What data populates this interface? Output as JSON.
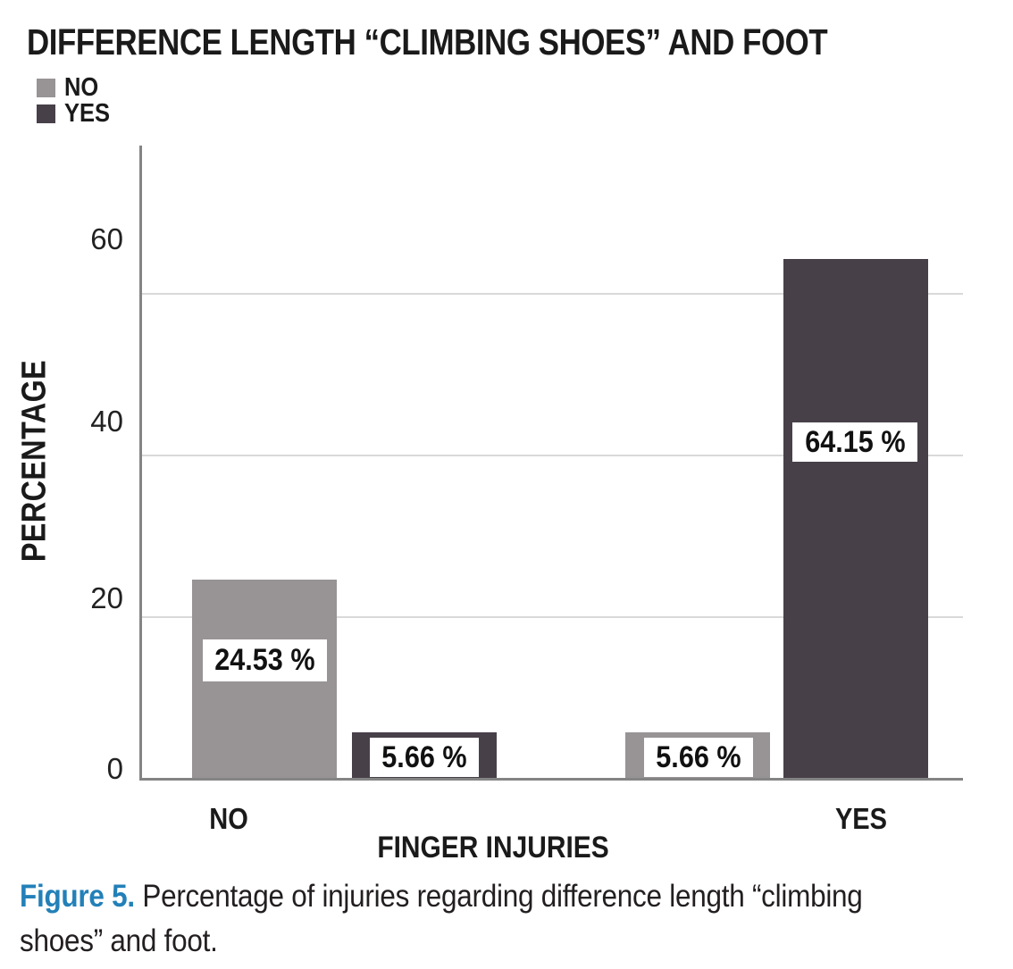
{
  "chart_data": {
    "type": "bar",
    "title": "DIFFERENCE LENGTH “CLIMBING SHOES” AND FOOT",
    "categories": [
      "NO",
      "YES"
    ],
    "series": [
      {
        "name": "NO",
        "color": "#989495",
        "values": [
          24.53,
          5.66
        ]
      },
      {
        "name": "YES",
        "color": "#474049",
        "values": [
          5.66,
          64.15
        ]
      }
    ],
    "value_labels": [
      "24.53 %",
      "5.66 %",
      "5.66 %",
      "64.15 %"
    ],
    "xlabel": "FINGER INJURIES",
    "ylabel": "PERCENTAGE",
    "yticks": [
      0,
      20,
      40,
      60
    ],
    "ylim": [
      0,
      70
    ],
    "grid": "horizontal",
    "legend_position": "top-left"
  },
  "caption": {
    "label": "Figure 5.",
    "line1": "Percentage of injuries regarding difference length “climbing",
    "line2": "shoes” and foot.",
    "accent_color": "#2380b8",
    "text_color": "#231f20"
  },
  "colors": {
    "axis": "#848484",
    "gridline": "#d9d9d9",
    "title_text": "#1a1a1a",
    "value_label_bg": "#ffffff",
    "value_label_text": "#111111"
  }
}
